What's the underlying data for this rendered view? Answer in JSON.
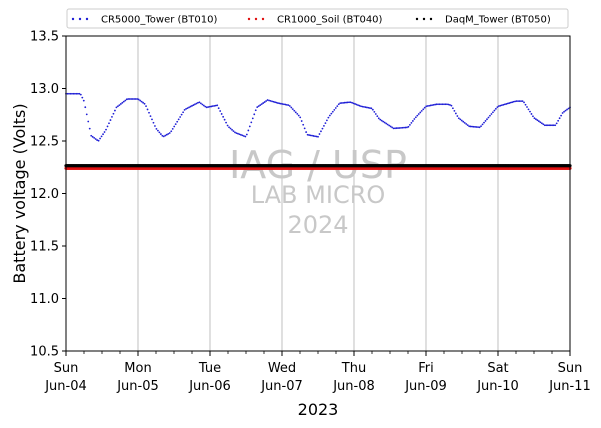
{
  "chart_data": {
    "type": "scatter",
    "ylabel": "Battery voltage (Volts)",
    "xlabel": "2023",
    "ylim": [
      10.5,
      13.5
    ],
    "yticks": [
      "10.5",
      "11.0",
      "11.5",
      "12.0",
      "12.5",
      "13.0",
      "13.5"
    ],
    "xlim_days": [
      0,
      7
    ],
    "xticks": [
      {
        "day": "Sun",
        "date": "Jun-04"
      },
      {
        "day": "Mon",
        "date": "Jun-05"
      },
      {
        "day": "Tue",
        "date": "Jun-06"
      },
      {
        "day": "Wed",
        "date": "Jun-07"
      },
      {
        "day": "Thu",
        "date": "Jun-08"
      },
      {
        "day": "Fri",
        "date": "Jun-09"
      },
      {
        "day": "Sat",
        "date": "Jun-10"
      },
      {
        "day": "Sun",
        "date": "Jun-11"
      }
    ],
    "grid": "vertical",
    "legend_position": "top",
    "watermark": [
      "IAG / USP",
      "LAB MICRO",
      "2024"
    ],
    "series": [
      {
        "name": "CR5000_Tower (BT010)",
        "color": "#1f1fd6",
        "marker": "dot",
        "x": [
          0,
          0.2,
          0.25,
          0.35,
          0.45,
          0.55,
          0.7,
          0.85,
          1.0,
          1.1,
          1.25,
          1.35,
          1.45,
          1.65,
          1.85,
          1.95,
          2.1,
          2.25,
          2.35,
          2.5,
          2.65,
          2.8,
          2.95,
          3.1,
          3.25,
          3.35,
          3.5,
          3.65,
          3.8,
          3.95,
          4.1,
          4.25,
          4.35,
          4.55,
          4.75,
          4.85,
          5.0,
          5.15,
          5.3,
          5.35,
          5.45,
          5.6,
          5.75,
          5.85,
          6.0,
          6.25,
          6.35,
          6.5,
          6.65,
          6.8,
          6.9,
          7.0
        ],
        "y": [
          12.95,
          12.95,
          12.88,
          12.55,
          12.5,
          12.6,
          12.82,
          12.9,
          12.9,
          12.85,
          12.62,
          12.54,
          12.58,
          12.8,
          12.87,
          12.82,
          12.84,
          12.64,
          12.58,
          12.54,
          12.82,
          12.89,
          12.86,
          12.84,
          12.73,
          12.56,
          12.54,
          12.73,
          12.86,
          12.87,
          12.83,
          12.81,
          12.71,
          12.62,
          12.63,
          12.72,
          12.83,
          12.85,
          12.85,
          12.84,
          12.72,
          12.64,
          12.63,
          12.71,
          12.83,
          12.88,
          12.88,
          12.72,
          12.65,
          12.65,
          12.77,
          12.82
        ]
      },
      {
        "name": "CR1000_Soil (BT040)",
        "color": "#e01010",
        "marker": "dot",
        "x": [
          0,
          1,
          2,
          3,
          4,
          5,
          6,
          7
        ],
        "y": [
          12.24,
          12.24,
          12.24,
          12.24,
          12.24,
          12.24,
          12.24,
          12.24
        ]
      },
      {
        "name": "DaqM_Tower (BT050)",
        "color": "#000000",
        "marker": "dot",
        "x": [
          0,
          1,
          2,
          3,
          4,
          5,
          6,
          7
        ],
        "y": [
          12.265,
          12.265,
          12.265,
          12.265,
          12.265,
          12.265,
          12.265,
          12.265
        ]
      }
    ]
  }
}
